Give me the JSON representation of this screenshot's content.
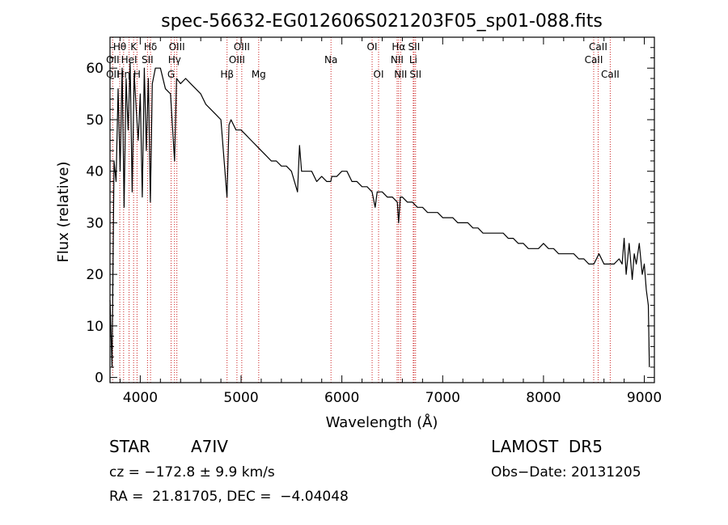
{
  "chart_data": {
    "type": "line",
    "title": "spec-56632-EG012606S021203F05_sp01-088.fits",
    "xlabel": "Wavelength (Å)",
    "ylabel": "Flux (relative)",
    "xlim": [
      3700,
      9100
    ],
    "ylim": [
      -1,
      66
    ],
    "xticks": [
      4000,
      5000,
      6000,
      7000,
      8000,
      9000
    ],
    "yticks": [
      0,
      10,
      20,
      30,
      40,
      50,
      60
    ],
    "grid": false,
    "series": [
      {
        "color": "#000000",
        "x": [
          3700,
          3720,
          3740,
          3760,
          3780,
          3800,
          3820,
          3840,
          3860,
          3880,
          3900,
          3920,
          3940,
          3960,
          3980,
          4000,
          4020,
          4040,
          4060,
          4080,
          4100,
          4120,
          4150,
          4200,
          4250,
          4300,
          4340,
          4360,
          4400,
          4450,
          4500,
          4550,
          4600,
          4650,
          4700,
          4750,
          4800,
          4860,
          4880,
          4900,
          4950,
          5000,
          5050,
          5100,
          5150,
          5200,
          5250,
          5300,
          5350,
          5400,
          5450,
          5500,
          5560,
          5580,
          5600,
          5650,
          5700,
          5750,
          5800,
          5850,
          5890,
          5900,
          5950,
          6000,
          6050,
          6100,
          6150,
          6200,
          6250,
          6300,
          6330,
          6350,
          6400,
          6450,
          6500,
          6550,
          6563,
          6580,
          6600,
          6650,
          6700,
          6750,
          6800,
          6850,
          6900,
          6950,
          7000,
          7050,
          7100,
          7150,
          7200,
          7250,
          7300,
          7350,
          7400,
          7450,
          7500,
          7550,
          7600,
          7650,
          7700,
          7750,
          7800,
          7850,
          7900,
          7950,
          8000,
          8050,
          8100,
          8150,
          8200,
          8250,
          8300,
          8350,
          8400,
          8450,
          8500,
          8550,
          8600,
          8650,
          8700,
          8750,
          8780,
          8800,
          8820,
          8850,
          8880,
          8900,
          8920,
          8950,
          8980,
          9000,
          9020,
          9040,
          9050
        ],
        "y": [
          15,
          2,
          42,
          38,
          56,
          40,
          60,
          33,
          58,
          48,
          61,
          36,
          59,
          52,
          46,
          55,
          35,
          60,
          44,
          58,
          34,
          57,
          60,
          60,
          56,
          55,
          42,
          58,
          57,
          58,
          57,
          56,
          55,
          53,
          52,
          51,
          50,
          35,
          49,
          50,
          48,
          48,
          47,
          46,
          45,
          44,
          43,
          42,
          42,
          41,
          41,
          40,
          36,
          45,
          40,
          40,
          40,
          38,
          39,
          38,
          38,
          39,
          39,
          40,
          40,
          38,
          38,
          37,
          37,
          36,
          33,
          36,
          36,
          35,
          35,
          34,
          30,
          35,
          35,
          34,
          34,
          33,
          33,
          32,
          32,
          32,
          31,
          31,
          31,
          30,
          30,
          30,
          29,
          29,
          28,
          28,
          28,
          28,
          28,
          27,
          27,
          26,
          26,
          25,
          25,
          25,
          26,
          25,
          25,
          24,
          24,
          24,
          24,
          23,
          23,
          22,
          22,
          24,
          22,
          22,
          22,
          23,
          22,
          27,
          20,
          26,
          19,
          24,
          22,
          26,
          20,
          22,
          17,
          14,
          2
        ]
      }
    ],
    "spectral_lines": [
      {
        "name": "Hθ",
        "x": 3797,
        "row": 1
      },
      {
        "name": "K",
        "x": 3934,
        "row": 1
      },
      {
        "name": "Hδ",
        "x": 4102,
        "row": 1
      },
      {
        "name": "OIII",
        "x": 4363,
        "row": 1
      },
      {
        "name": "OIII",
        "x": 5007,
        "row": 1
      },
      {
        "name": "OI",
        "x": 6300,
        "row": 1
      },
      {
        "name": "Hα",
        "x": 6563,
        "row": 1
      },
      {
        "name": "SII",
        "x": 6716,
        "row": 1
      },
      {
        "name": "CaII",
        "x": 8542,
        "row": 1
      },
      {
        "name": "OII",
        "x": 3727,
        "row": 2
      },
      {
        "name": "HeI",
        "x": 3889,
        "row": 2
      },
      {
        "name": "SII",
        "x": 4072,
        "row": 2
      },
      {
        "name": "Hγ",
        "x": 4340,
        "row": 2
      },
      {
        "name": "OIII",
        "x": 4959,
        "row": 2
      },
      {
        "name": "Na",
        "x": 5892,
        "row": 2
      },
      {
        "name": "NII",
        "x": 6548,
        "row": 2
      },
      {
        "name": "Li",
        "x": 6708,
        "row": 2
      },
      {
        "name": "CaII",
        "x": 8498,
        "row": 2
      },
      {
        "name": "OII",
        "x": 3727,
        "row": 3
      },
      {
        "name": "Hη",
        "x": 3835,
        "row": 3
      },
      {
        "name": "H",
        "x": 3968,
        "row": 3
      },
      {
        "name": "G",
        "x": 4306,
        "row": 3
      },
      {
        "name": "Hβ",
        "x": 4861,
        "row": 3
      },
      {
        "name": "Mg",
        "x": 5175,
        "row": 3
      },
      {
        "name": "OI",
        "x": 6364,
        "row": 3
      },
      {
        "name": "NII",
        "x": 6583,
        "row": 3
      },
      {
        "name": "SII",
        "x": 6731,
        "row": 3
      },
      {
        "name": "CaII",
        "x": 8662,
        "row": 3
      }
    ]
  },
  "info": {
    "object_class": "STAR",
    "subclass": "A7IV",
    "survey": "LAMOST  DR5",
    "redshift_line": "cz = −172.8 ± 9.9 km/s",
    "obs_date": "Obs−Date: 20131205",
    "coords_line": "RA =  21.81705, DEC =  −4.04048"
  }
}
